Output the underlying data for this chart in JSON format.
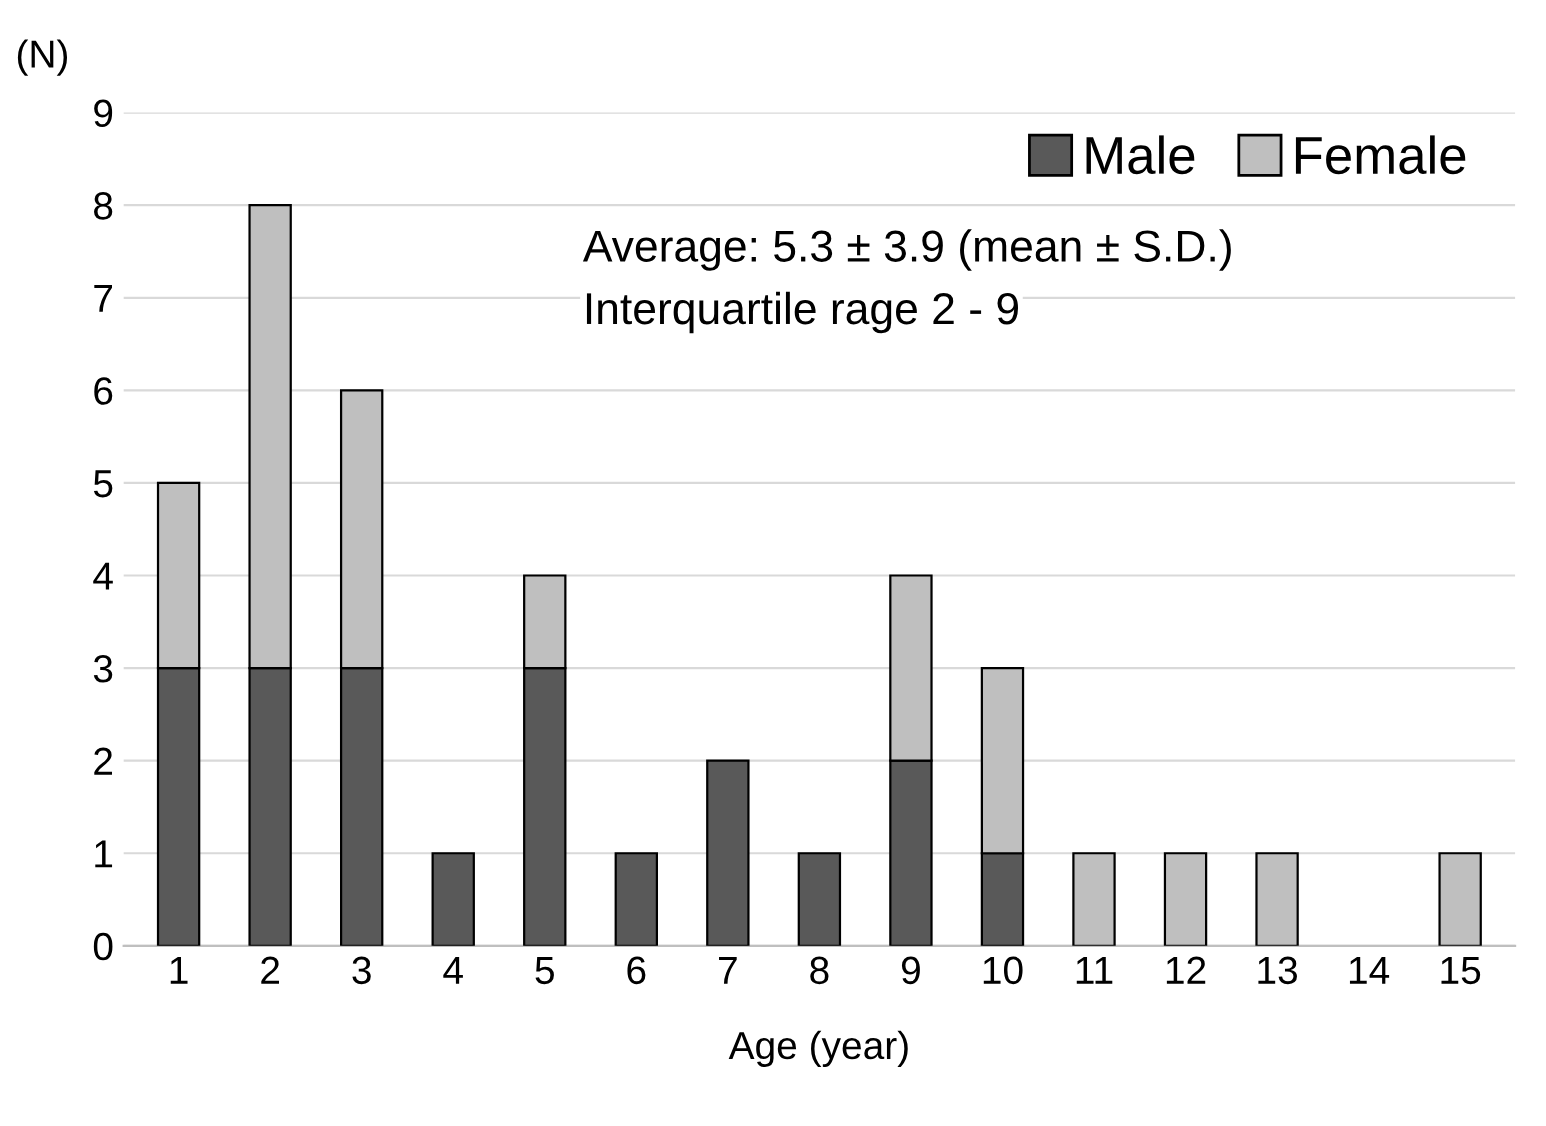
{
  "chart_data": {
    "type": "bar",
    "stacked": true,
    "xlabel": "Age (year)",
    "ylabel": "(N)",
    "categories": [
      "1",
      "2",
      "3",
      "4",
      "5",
      "6",
      "7",
      "8",
      "9",
      "10",
      "11",
      "12",
      "13",
      "14",
      "15"
    ],
    "series": [
      {
        "name": "Male",
        "color": "#595959",
        "values": [
          3,
          3,
          3,
          1,
          3,
          1,
          2,
          1,
          2,
          1,
          0,
          0,
          0,
          0,
          0
        ]
      },
      {
        "name": "Female",
        "color": "#bfbfbf",
        "values": [
          2,
          5,
          3,
          0,
          1,
          0,
          0,
          0,
          2,
          2,
          1,
          1,
          1,
          0,
          1
        ]
      }
    ],
    "ylim": [
      0,
      9
    ],
    "yticks": [
      0,
      1,
      2,
      3,
      4,
      5,
      6,
      7,
      8,
      9
    ],
    "grid": "y",
    "legend": "top right",
    "annotations": [
      "Average: 5.3 ± 3.9 (mean ± S.D.)",
      "Interquartile rage 2 - 9"
    ]
  }
}
